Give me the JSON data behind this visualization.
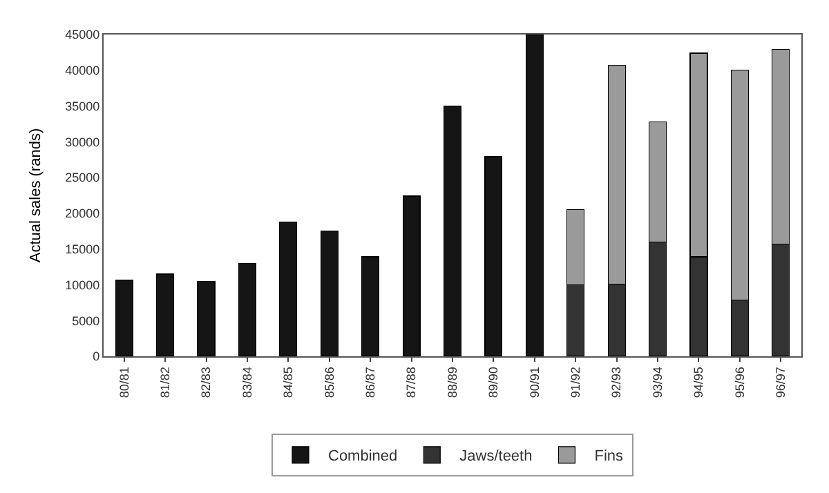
{
  "chart_data": {
    "type": "bar",
    "stacked": true,
    "ylabel": "Actual sales (rands)",
    "categories": [
      "80/81",
      "81/82",
      "82/83",
      "83/84",
      "84/85",
      "85/86",
      "86/87",
      "87/88",
      "88/89",
      "89/90",
      "90/91",
      "91/92",
      "92/93",
      "93/94",
      "94/95",
      "95/96",
      "96/97"
    ],
    "series": [
      {
        "name": "Combined",
        "color": "#151515",
        "values": [
          10700,
          11500,
          10500,
          13000,
          18800,
          17500,
          13900,
          22400,
          35000,
          27900,
          45000,
          null,
          null,
          null,
          null,
          null,
          null
        ]
      },
      {
        "name": "Jaws/teeth",
        "color": "#333333",
        "values": [
          null,
          null,
          null,
          null,
          null,
          null,
          null,
          null,
          null,
          null,
          null,
          10000,
          10100,
          16000,
          13900,
          7900,
          15700
        ]
      },
      {
        "name": "Fins",
        "color": "#9a9a9a",
        "values": [
          null,
          null,
          null,
          null,
          null,
          null,
          null,
          null,
          null,
          null,
          null,
          10500,
          30600,
          16800,
          28500,
          32100,
          27200
        ]
      }
    ],
    "ylim": [
      0,
      45000
    ],
    "yticks": [
      0,
      5000,
      10000,
      15000,
      20000,
      25000,
      30000,
      35000,
      40000,
      45000
    ],
    "legend": "bottom"
  }
}
